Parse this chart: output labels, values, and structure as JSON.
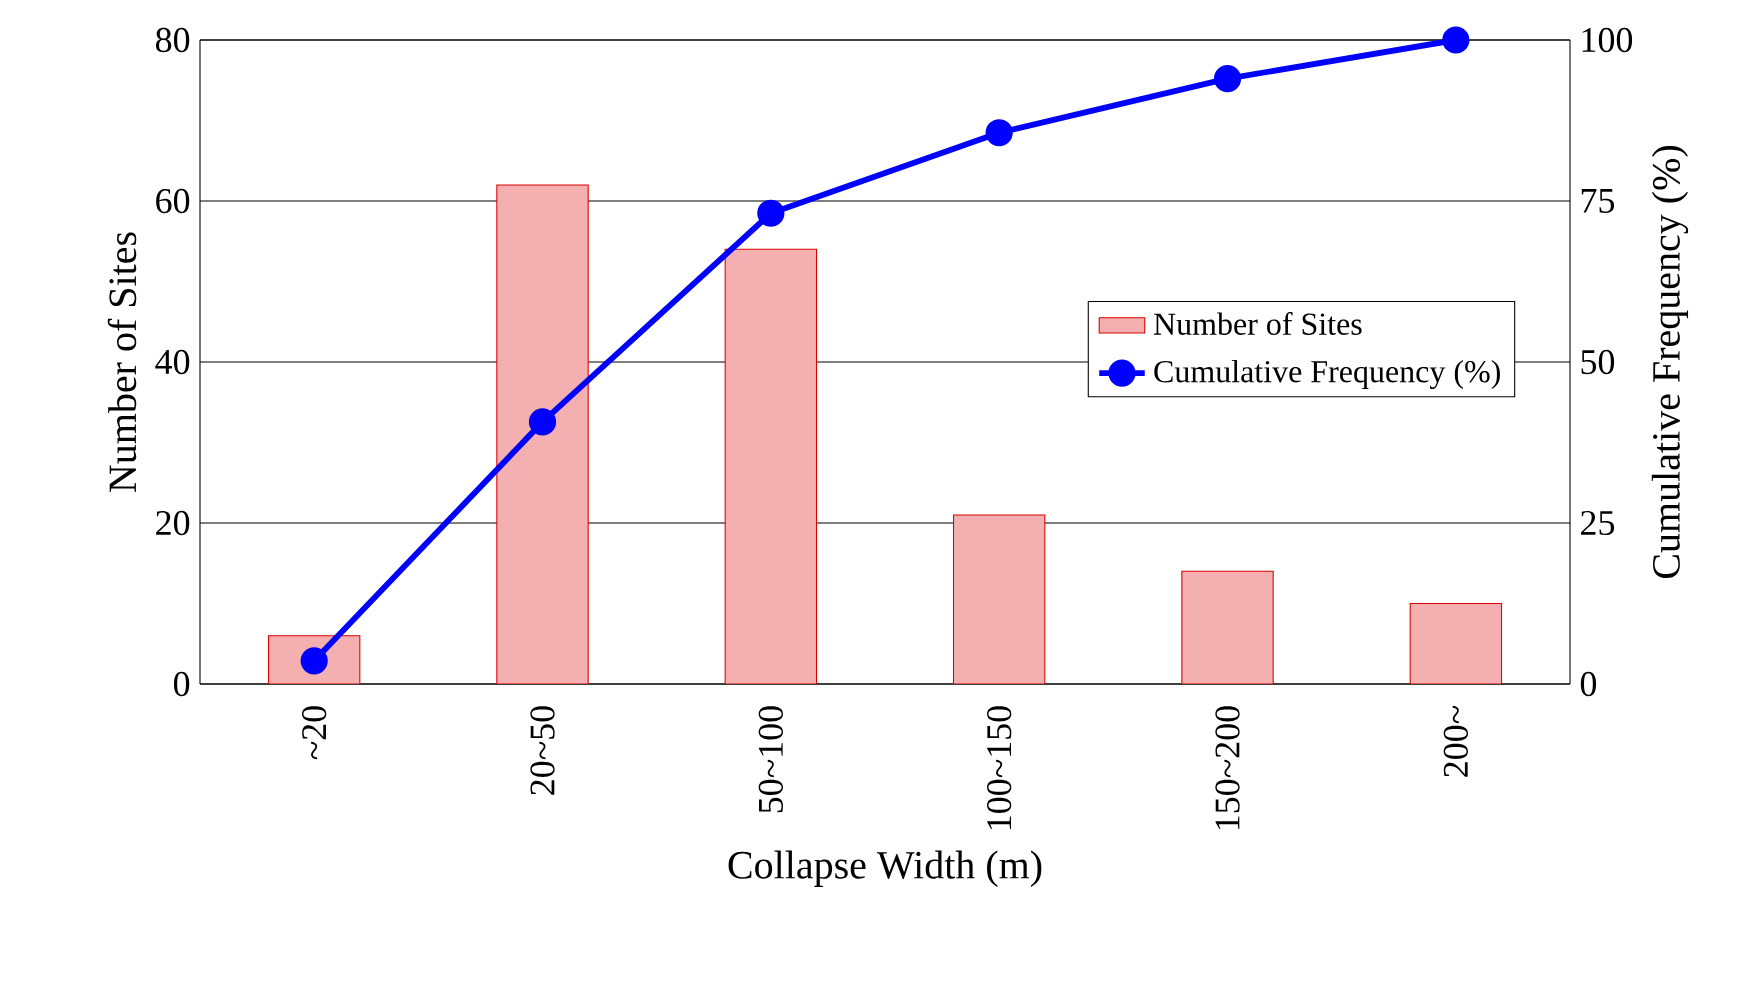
{
  "chart_data": {
    "type": "bar",
    "xlabel": "Collapse Width (m)",
    "ylabel": "Number of Sites",
    "y2label": "Cumulative Frequency (%)",
    "categories": [
      "~20",
      "20~50",
      "50~100",
      "100~150",
      "150~200",
      "200~"
    ],
    "series": [
      {
        "name": "Number of Sites",
        "color": "#f4b0b0",
        "values": [
          6,
          62,
          54,
          21,
          14,
          10
        ]
      },
      {
        "name": "Cumulative Frequency (%)",
        "type": "line",
        "axis": "y2",
        "color": "#0000ff",
        "marker": "circle",
        "values": [
          3.6,
          40.7,
          73.1,
          85.6,
          94.0,
          100
        ]
      }
    ],
    "ylim": [
      0,
      80
    ],
    "yticks": [
      0,
      20,
      40,
      60,
      80
    ],
    "y2lim": [
      0,
      100
    ],
    "y2ticks": [
      0,
      25,
      50,
      75,
      100
    ],
    "grid": "y",
    "legend": "right"
  }
}
